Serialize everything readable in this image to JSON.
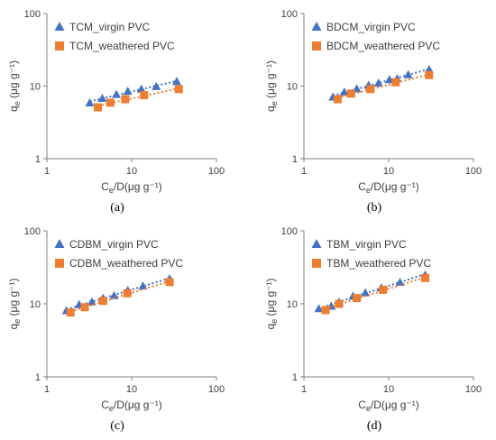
{
  "colors": {
    "virgin": "#4472C4",
    "weathered": "#ED7D31",
    "axis": "#7F7F7F",
    "text": "#404040"
  },
  "chart_data": [
    {
      "panel_label": "(a)",
      "type": "scatter",
      "xscale": "log",
      "yscale": "log",
      "xlim": [
        1,
        100
      ],
      "ylim": [
        1,
        100
      ],
      "x_ticks": [
        "1",
        "10",
        "100"
      ],
      "y_ticks": [
        "1",
        "10",
        "100"
      ],
      "ylabel": "q",
      "ylabel_sub": "e",
      "ylabel_units": " (μg g⁻¹)",
      "xlabel": "C",
      "xlabel_sub": "e",
      "xlabel_units": "/D(μg g⁻¹)",
      "legend_position": "top-left",
      "grid": false,
      "series": [
        {
          "name": "TCM_virgin PVC",
          "marker": "triangle",
          "x": [
            3.2,
            4.5,
            6.6,
            9.0,
            13.0,
            19.5,
            34.0
          ],
          "y": [
            5.9,
            6.8,
            7.7,
            8.5,
            9.1,
            9.9,
            11.6
          ]
        },
        {
          "name": "TCM_weathered PVC",
          "marker": "square",
          "x": [
            4.0,
            5.6,
            8.4,
            14.0,
            36.0
          ],
          "y": [
            5.1,
            5.9,
            6.6,
            7.5,
            9.1
          ]
        }
      ]
    },
    {
      "panel_label": "(b)",
      "type": "scatter",
      "xscale": "log",
      "yscale": "log",
      "xlim": [
        1,
        100
      ],
      "ylim": [
        1,
        100
      ],
      "x_ticks": [
        "1",
        "10",
        "100"
      ],
      "y_ticks": [
        "1",
        "10",
        "100"
      ],
      "ylabel": "q",
      "ylabel_sub": "e",
      "ylabel_units": " (μg g⁻¹)",
      "xlabel": "C",
      "xlabel_sub": "e",
      "xlabel_units": "/D(μg g⁻¹)",
      "legend_position": "top-left",
      "grid": false,
      "series": [
        {
          "name": "BDCM_virgin PVC",
          "marker": "triangle",
          "x": [
            2.2,
            3.0,
            4.2,
            5.8,
            7.6,
            10.2,
            12.6,
            17.0,
            30.0
          ],
          "y": [
            7.1,
            8.3,
            9.2,
            10.3,
            11.0,
            12.3,
            12.7,
            14.4,
            17.0
          ]
        },
        {
          "name": "BDCM_weathered PVC",
          "marker": "square",
          "x": [
            2.5,
            3.6,
            6.1,
            12.1,
            30.0
          ],
          "y": [
            6.6,
            7.9,
            9.1,
            11.3,
            14.2
          ]
        }
      ]
    },
    {
      "panel_label": "(c)",
      "type": "scatter",
      "xscale": "log",
      "yscale": "log",
      "xlim": [
        1,
        100
      ],
      "ylim": [
        1,
        100
      ],
      "x_ticks": [
        "1",
        "10",
        "100"
      ],
      "y_ticks": [
        "1",
        "10",
        "100"
      ],
      "ylabel": "q",
      "ylabel_sub": "e",
      "ylabel_units": " (μg g⁻¹)",
      "xlabel": "C",
      "xlabel_sub": "e",
      "xlabel_units": "/D(μg g⁻¹)",
      "legend_position": "top-left",
      "grid": false,
      "series": [
        {
          "name": "CDBM_virgin PVC",
          "marker": "triangle",
          "x": [
            1.7,
            2.4,
            3.4,
            4.6,
            6.2,
            9.0,
            13.6,
            28.0
          ],
          "y": [
            8.1,
            9.8,
            10.7,
            12.0,
            13.0,
            15.3,
            17.6,
            22.1
          ]
        },
        {
          "name": "CDBM_weathered PVC",
          "marker": "square",
          "x": [
            1.9,
            2.8,
            4.6,
            8.9,
            28.0
          ],
          "y": [
            7.6,
            9.0,
            11.0,
            14.0,
            19.9
          ]
        }
      ]
    },
    {
      "panel_label": "(d)",
      "type": "scatter",
      "xscale": "log",
      "yscale": "log",
      "xlim": [
        1,
        100
      ],
      "ylim": [
        1,
        100
      ],
      "x_ticks": [
        "1",
        "10",
        "100"
      ],
      "y_ticks": [
        "1",
        "10",
        "100"
      ],
      "ylabel": "q",
      "ylabel_sub": "e",
      "ylabel_units": " (μg g⁻¹)",
      "xlabel": "C",
      "xlabel_sub": "e",
      "xlabel_units": "/D(μg g⁻¹)",
      "legend_position": "top-left",
      "grid": false,
      "series": [
        {
          "name": "TBM_virgin PVC",
          "marker": "triangle",
          "x": [
            1.5,
            2.1,
            2.6,
            3.8,
            5.3,
            8.2,
            13.6,
            27.0
          ],
          "y": [
            8.6,
            9.3,
            10.6,
            12.8,
            14.2,
            16.6,
            19.8,
            24.9
          ]
        },
        {
          "name": "TBM_weathered PVC",
          "marker": "square",
          "x": [
            1.8,
            2.6,
            4.2,
            8.6,
            27.0
          ],
          "y": [
            8.2,
            10.0,
            12.0,
            15.6,
            22.6
          ]
        }
      ]
    }
  ]
}
